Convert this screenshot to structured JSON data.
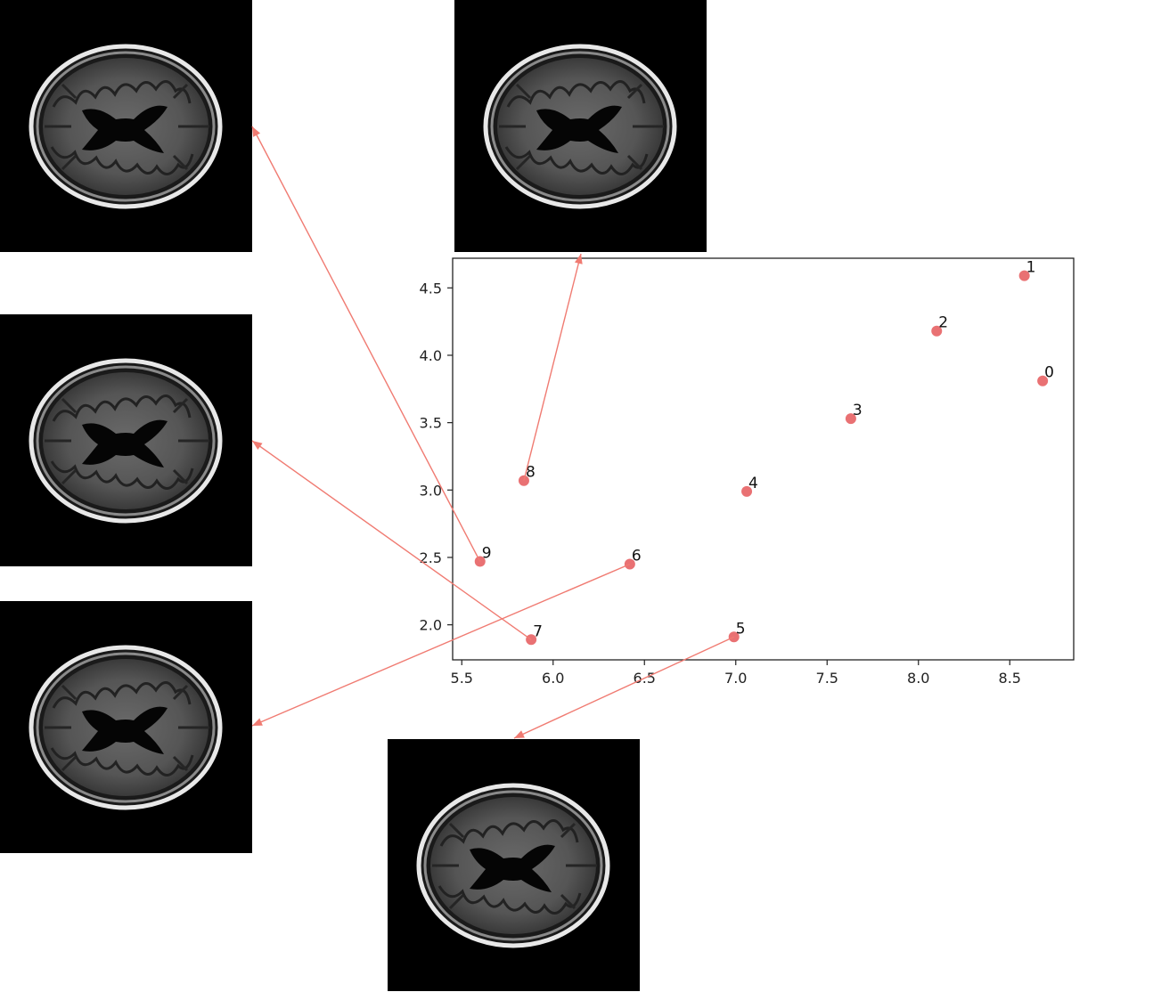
{
  "chart_data": {
    "type": "scatter",
    "title": "",
    "xlabel": "",
    "ylabel": "",
    "xlim": [
      5.45,
      8.85
    ],
    "ylim": [
      1.74,
      4.72
    ],
    "xticks": [
      5.5,
      6.0,
      6.5,
      7.0,
      7.5,
      8.0,
      8.5
    ],
    "xtick_labels": [
      "5.5",
      "6.0",
      "6.5",
      "7.0",
      "7.5",
      "8.0",
      "8.5"
    ],
    "yticks": [
      2.0,
      2.5,
      3.0,
      3.5,
      4.0,
      4.5
    ],
    "ytick_labels": [
      "2.0",
      "2.5",
      "3.0",
      "3.5",
      "4.0",
      "4.5"
    ],
    "grid": false,
    "marker_color": "#e8696b",
    "arrow_color": "#f07b72",
    "points": [
      {
        "label": "0",
        "x": 8.68,
        "y": 3.81
      },
      {
        "label": "1",
        "x": 8.58,
        "y": 4.59
      },
      {
        "label": "2",
        "x": 8.1,
        "y": 4.18
      },
      {
        "label": "3",
        "x": 7.63,
        "y": 3.53
      },
      {
        "label": "4",
        "x": 7.06,
        "y": 2.99
      },
      {
        "label": "5",
        "x": 6.99,
        "y": 1.91
      },
      {
        "label": "6",
        "x": 6.42,
        "y": 2.45
      },
      {
        "label": "7",
        "x": 5.88,
        "y": 1.89
      },
      {
        "label": "8",
        "x": 5.84,
        "y": 3.07
      },
      {
        "label": "9",
        "x": 5.6,
        "y": 2.47
      }
    ],
    "image_links": [
      {
        "point": "9",
        "thumbnail": "brain-mri-axial"
      },
      {
        "point": "8",
        "thumbnail": "brain-mri-axial"
      },
      {
        "point": "7",
        "thumbnail": "brain-mri-axial"
      },
      {
        "point": "6",
        "thumbnail": "brain-mri-axial"
      },
      {
        "point": "5",
        "thumbnail": "brain-mri-axial"
      }
    ]
  }
}
